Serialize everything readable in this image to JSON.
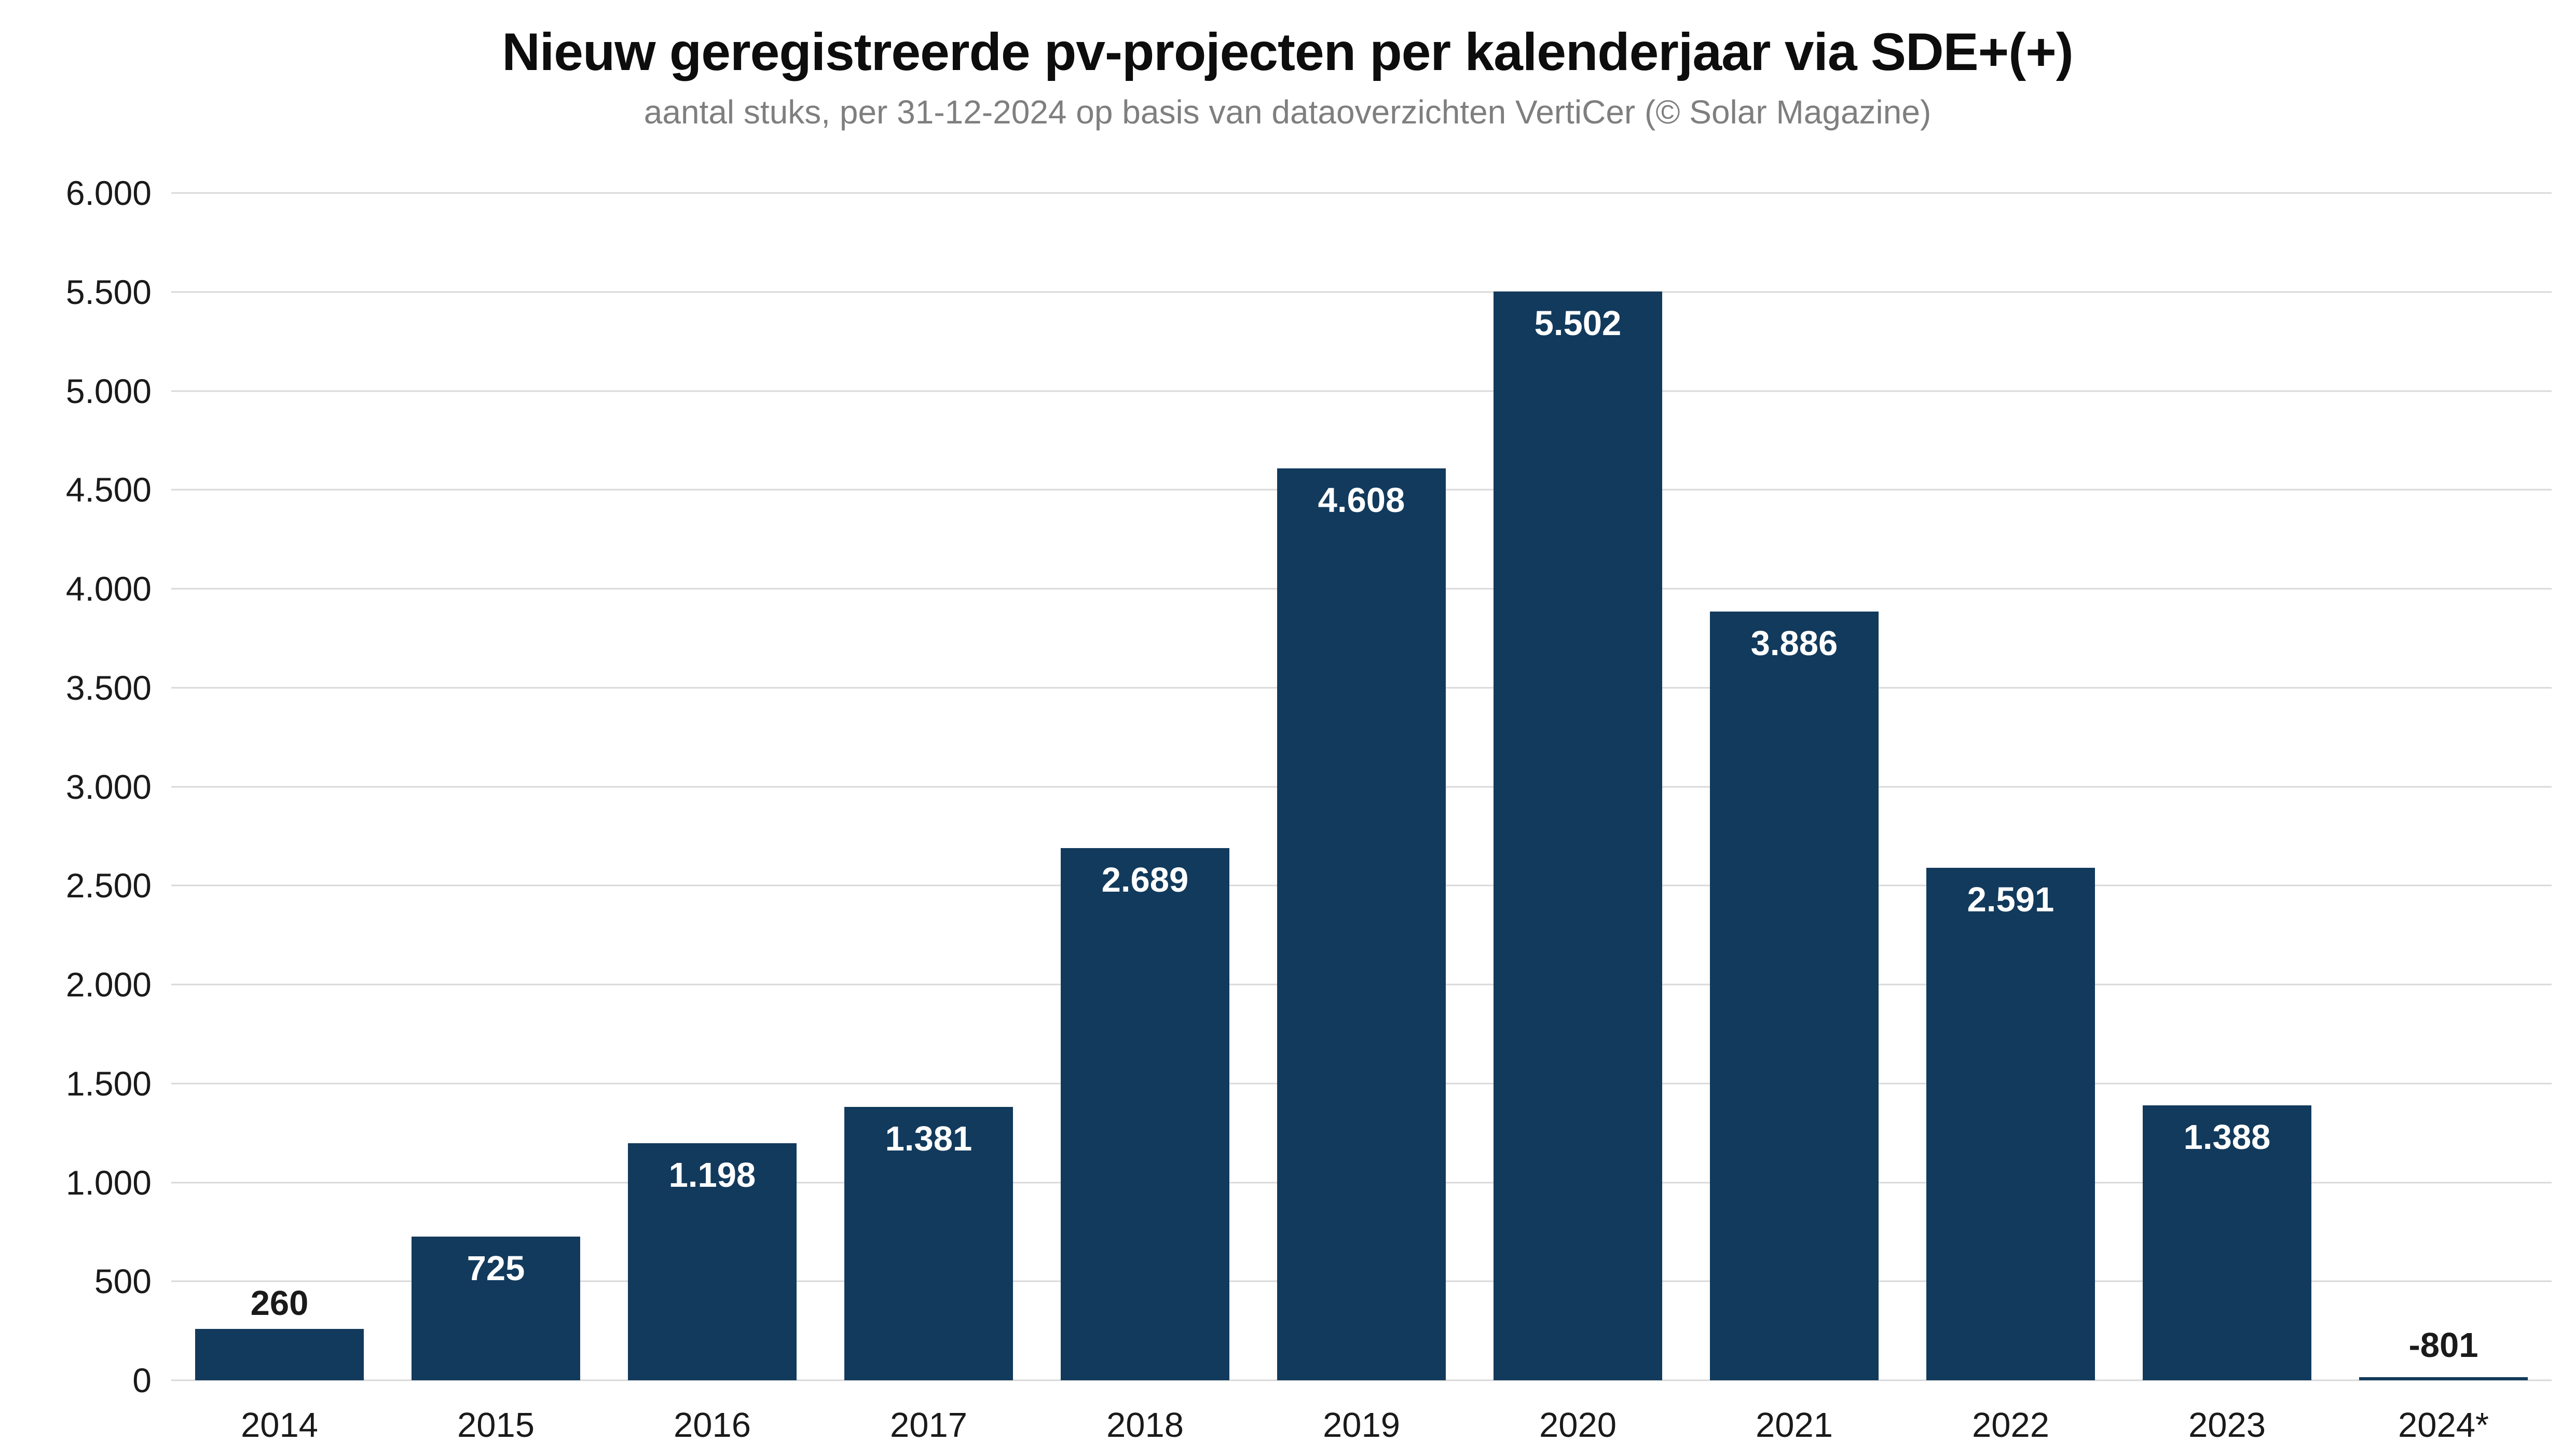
{
  "header": {
    "title": "Nieuw geregistreerde pv-projecten per kalenderjaar via SDE+(+)",
    "subtitle": "aantal stuks, per 31-12-2024 op basis van dataoverzichten VertiCer (© Solar Magazine)"
  },
  "chart_data": {
    "type": "bar",
    "title": "Nieuw geregistreerde pv-projecten per kalenderjaar via SDE+(+)",
    "subtitle": "aantal stuks, per 31-12-2024 op basis van dataoverzichten VertiCer (© Solar Magazine)",
    "categories": [
      "2014",
      "2015",
      "2016",
      "2017",
      "2018",
      "2019",
      "2020",
      "2021",
      "2022",
      "2023",
      "2024*"
    ],
    "values": [
      260,
      725,
      1198,
      1381,
      2689,
      4608,
      5502,
      3886,
      2591,
      1388,
      -801
    ],
    "value_labels": [
      "260",
      "725",
      "1.198",
      "1.381",
      "2.689",
      "4.608",
      "5.502",
      "3.886",
      "2.591",
      "1.388",
      "-801"
    ],
    "xlabel": "",
    "ylabel": "",
    "ylim": [
      0,
      6000
    ],
    "y_ticks": [
      0,
      500,
      1000,
      1500,
      2000,
      2500,
      3000,
      3500,
      4000,
      4500,
      5000,
      5500,
      6000
    ],
    "y_tick_labels": [
      "0",
      "500",
      "1.000",
      "1.500",
      "2.000",
      "2.500",
      "3.000",
      "3.500",
      "4.000",
      "4.500",
      "5.000",
      "5.500",
      "6.000"
    ],
    "grid": true,
    "legend_position": "none",
    "colors": {
      "bar": "#123A5C",
      "label_inside": "#FFFFFF",
      "label_outside": "#1A1A1A",
      "gridline": "#D9D9D9",
      "title": "#0D0D0D",
      "subtitle": "#7F7F7F"
    }
  }
}
